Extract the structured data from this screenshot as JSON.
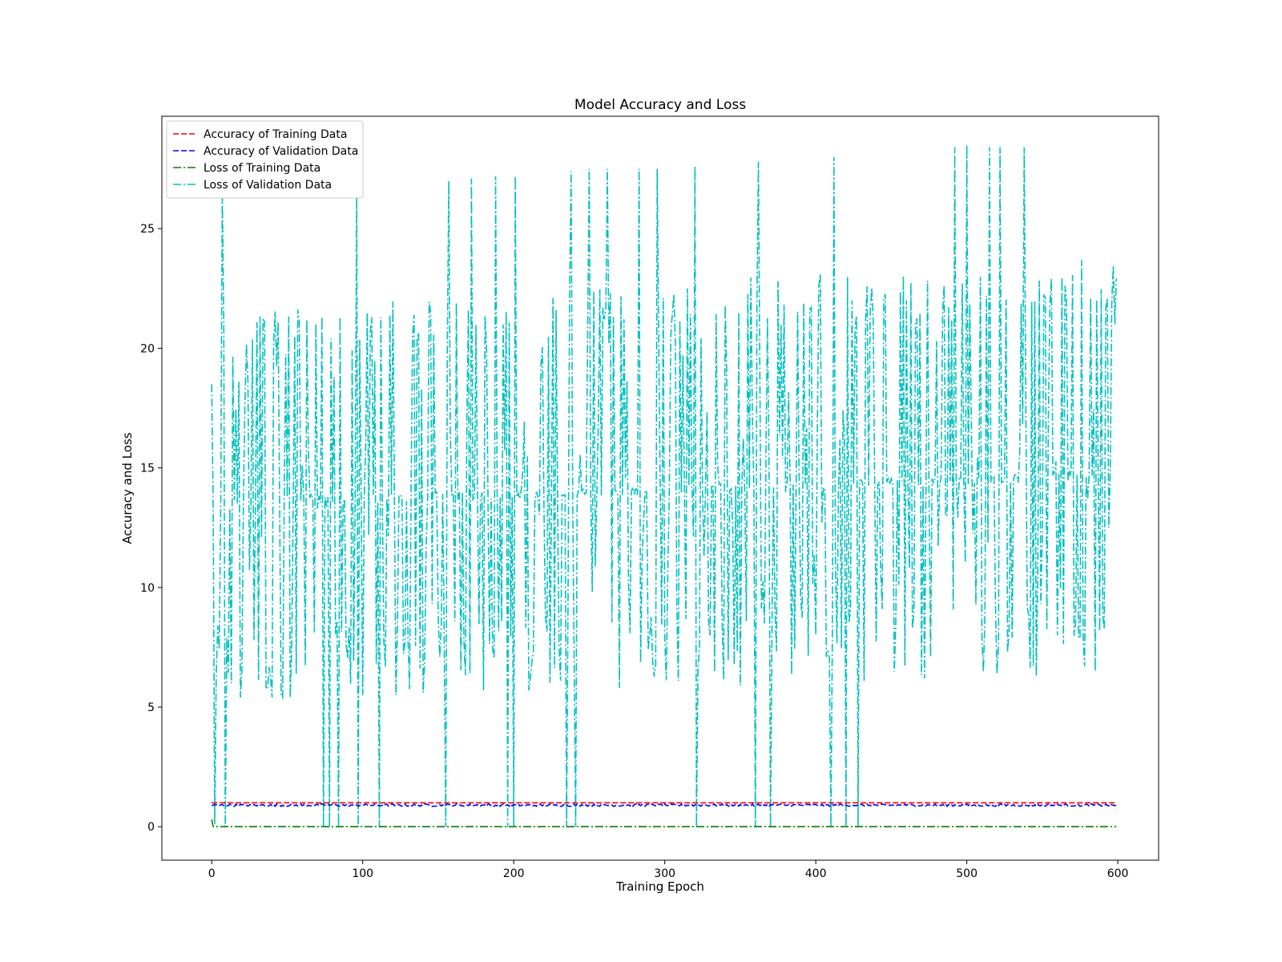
{
  "chart_data": {
    "type": "line",
    "title": "Model Accuracy and Loss",
    "xlabel": "Training Epoch",
    "ylabel": "Accuracy and Loss",
    "xlim": [
      -33,
      627
    ],
    "ylim": [
      -1.4,
      29.7
    ],
    "xticks": [
      0,
      100,
      200,
      300,
      400,
      500,
      600
    ],
    "yticks": [
      0,
      5,
      10,
      15,
      20,
      25
    ],
    "grid": false,
    "legend_position": "upper-left",
    "series": [
      {
        "name": "Accuracy of Training Data",
        "color": "#ff0000",
        "style": "dashed",
        "x_range": [
          0,
          599
        ],
        "values": "≈1.0 at every epoch (0–599)"
      },
      {
        "name": "Accuracy of Validation Data",
        "color": "#0000ff",
        "style": "dashed",
        "x_range": [
          0,
          599
        ],
        "values": "≈0.85–0.95 at every epoch (0–599), small fluctuations"
      },
      {
        "name": "Loss of Training Data",
        "color": "#008000",
        "style": "dashdot",
        "x_range": [
          0,
          599
        ],
        "values": "≈0.0 at every epoch (0–599); ≈0.3 at epoch 0"
      },
      {
        "name": "Loss of Validation Data",
        "color": "#00bfbf",
        "style": "dashdot",
        "x_range": [
          0,
          599
        ],
        "sample_points": [
          [
            0,
            18.5
          ],
          [
            1,
            13.3
          ],
          [
            2,
            0.1
          ],
          [
            7,
            26.6
          ],
          [
            8,
            21.1
          ],
          [
            9,
            0.0
          ],
          [
            12,
            13.3
          ],
          [
            18,
            18.6
          ],
          [
            19,
            5.4
          ],
          [
            24,
            18.6
          ],
          [
            28,
            7.8
          ],
          [
            30,
            21.1
          ],
          [
            35,
            21.1
          ],
          [
            40,
            5.4
          ],
          [
            44,
            21.1
          ],
          [
            47,
            5.4
          ],
          [
            52,
            5.4
          ],
          [
            58,
            21.1
          ],
          [
            63,
            21.2
          ],
          [
            70,
            13.3
          ],
          [
            74,
            0.0
          ],
          [
            76,
            13.4
          ],
          [
            78,
            0.0
          ],
          [
            81,
            18.8
          ],
          [
            84,
            0.0
          ],
          [
            85,
            21.3
          ],
          [
            96,
            26.7
          ],
          [
            97,
            0.0
          ],
          [
            100,
            5.5
          ],
          [
            106,
            21.3
          ],
          [
            111,
            0.0
          ],
          [
            112,
            21.3
          ],
          [
            118,
            21.4
          ],
          [
            122,
            5.5
          ],
          [
            130,
            7.9
          ],
          [
            134,
            21.4
          ],
          [
            140,
            5.6
          ],
          [
            145,
            21.5
          ],
          [
            155,
            0.0
          ],
          [
            157,
            27.0
          ],
          [
            170,
            21.6
          ],
          [
            172,
            27.1
          ],
          [
            180,
            5.7
          ],
          [
            188,
            27.2
          ],
          [
            196,
            0.0
          ],
          [
            200,
            0.0
          ],
          [
            201,
            27.2
          ],
          [
            210,
            5.7
          ],
          [
            218,
            19.3
          ],
          [
            228,
            21.6
          ],
          [
            235,
            0.0
          ],
          [
            238,
            27.4
          ],
          [
            241,
            0.0
          ],
          [
            250,
            27.5
          ],
          [
            262,
            27.5
          ],
          [
            270,
            5.8
          ],
          [
            283,
            27.5
          ],
          [
            295,
            27.5
          ],
          [
            300,
            7.9
          ],
          [
            312,
            19.7
          ],
          [
            320,
            27.6
          ],
          [
            321,
            0.0
          ],
          [
            330,
            8.0
          ],
          [
            340,
            21.8
          ],
          [
            350,
            5.9
          ],
          [
            360,
            0.0
          ],
          [
            362,
            27.8
          ],
          [
            370,
            0.0
          ],
          [
            380,
            14.0
          ],
          [
            392,
            21.9
          ],
          [
            400,
            8.0
          ],
          [
            410,
            0.0
          ],
          [
            412,
            28.0
          ],
          [
            420,
            0.0
          ],
          [
            424,
            22.0
          ],
          [
            428,
            0.0
          ],
          [
            432,
            6.1
          ],
          [
            445,
            22.0
          ],
          [
            460,
            22.0
          ],
          [
            472,
            6.2
          ],
          [
            480,
            20.3
          ],
          [
            492,
            28.4
          ],
          [
            500,
            28.5
          ],
          [
            510,
            7.9
          ],
          [
            515,
            28.4
          ],
          [
            520,
            6.4
          ],
          [
            522,
            28.4
          ],
          [
            530,
            7.9
          ],
          [
            538,
            28.4
          ],
          [
            546,
            6.3
          ],
          [
            552,
            22.1
          ],
          [
            560,
            8.0
          ],
          [
            566,
            22.1
          ],
          [
            575,
            7.9
          ],
          [
            582,
            22.1
          ],
          [
            585,
            6.5
          ],
          [
            593,
            22.1
          ],
          [
            598,
            21.0
          ]
        ]
      }
    ]
  }
}
